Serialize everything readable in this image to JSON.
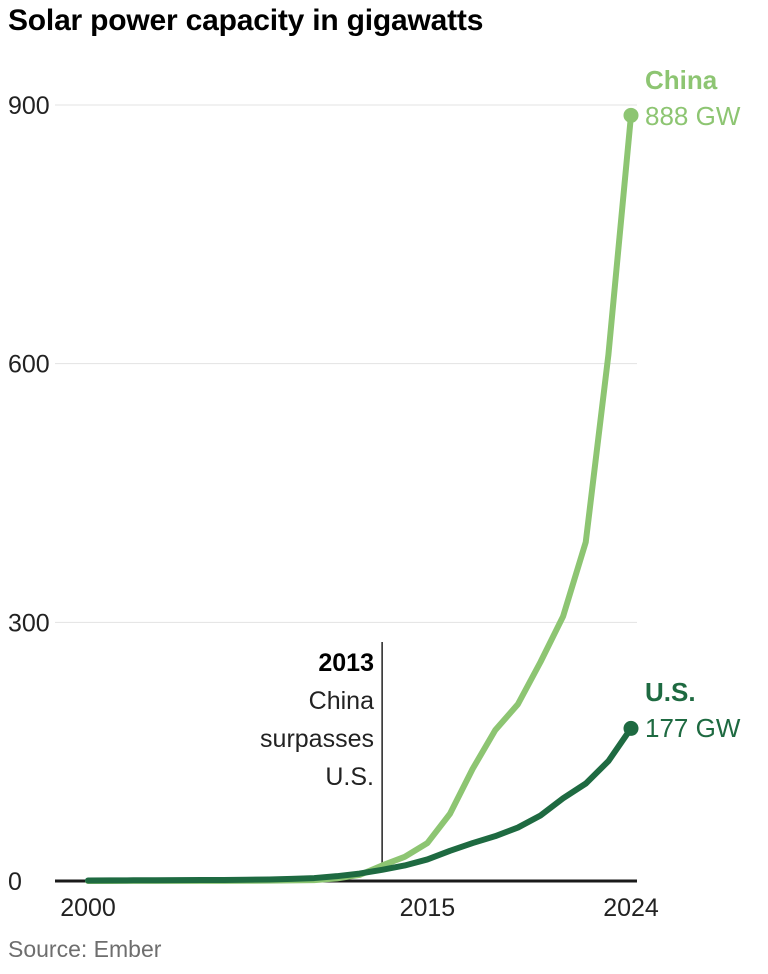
{
  "chart_data": {
    "type": "line",
    "title": "Solar power capacity in gigawatts",
    "source": "Source: Ember",
    "xlabel": "",
    "ylabel": "",
    "grid": "horizontal",
    "legend": "end-of-line-labels",
    "ylim": [
      0,
      900
    ],
    "yticks": [
      0,
      300,
      600,
      900
    ],
    "xticks": [
      2000,
      2015,
      2024
    ],
    "x": [
      2000,
      2001,
      2002,
      2003,
      2004,
      2005,
      2006,
      2007,
      2008,
      2009,
      2010,
      2011,
      2012,
      2013,
      2014,
      2015,
      2016,
      2017,
      2018,
      2019,
      2020,
      2021,
      2022,
      2023,
      2024
    ],
    "annotation": {
      "year": "2013",
      "year_value": 2013,
      "lines": [
        "China",
        "surpasses",
        "U.S."
      ]
    },
    "series": [
      {
        "id": "china",
        "name": "China",
        "color": "#8dc572",
        "end_label": "888 GW",
        "end_value": 888,
        "values": [
          0.03,
          0.05,
          0.1,
          0.1,
          0.1,
          0.15,
          0.2,
          0.3,
          0.4,
          0.7,
          1,
          3,
          7,
          18,
          28,
          44,
          78,
          130,
          175,
          205,
          254,
          307,
          393,
          610,
          888
        ]
      },
      {
        "id": "us",
        "name": "U.S.",
        "color": "#1e6a41",
        "end_label": "177 GW",
        "end_value": 177,
        "values": [
          0.6,
          0.7,
          0.8,
          0.9,
          1.0,
          1.1,
          1.2,
          1.4,
          1.8,
          2.5,
          3.4,
          5.6,
          8.6,
          13,
          18,
          25,
          35,
          44,
          52,
          62,
          76,
          96,
          113,
          139,
          177
        ]
      }
    ]
  },
  "colors": {
    "background": "#ffffff",
    "grid": "#e3e3e3",
    "axis": "#1a1a1a",
    "tick_text": "#222222",
    "annotation_line": "#222222",
    "source_text": "#6e6e6e"
  }
}
